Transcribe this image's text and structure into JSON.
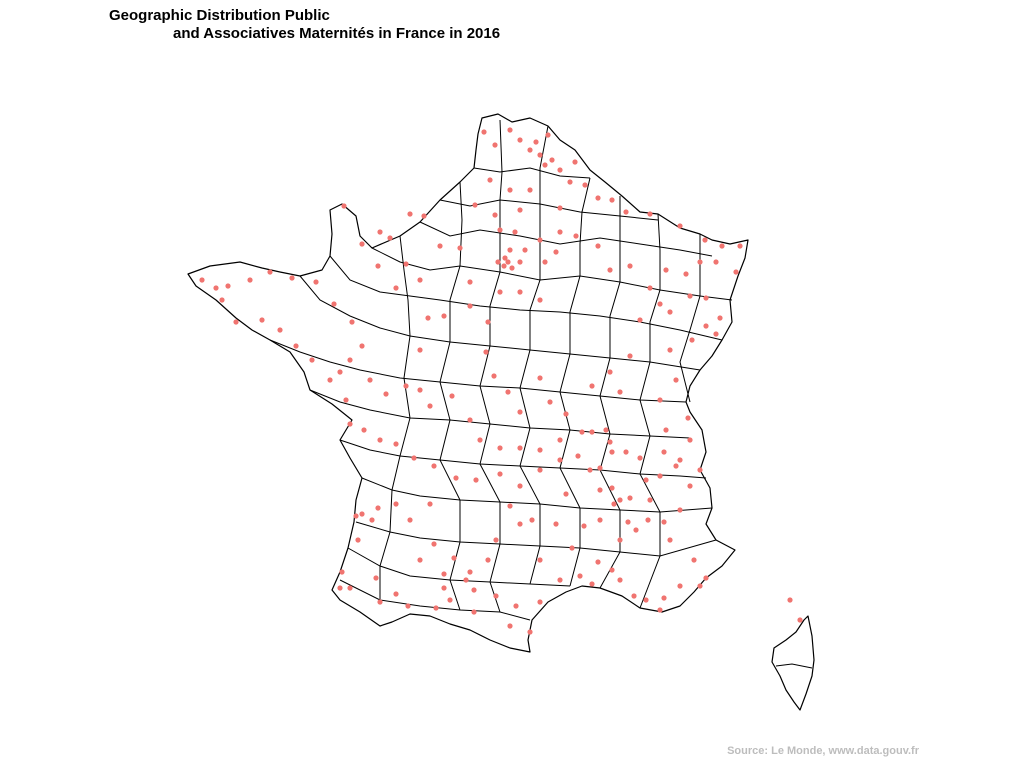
{
  "title": {
    "line1": "Geographic Distribution Public",
    "line2": "and Associatives Maternités in France in 2016"
  },
  "caption": "Source: Le Monde, www.data.gouv.fr",
  "colors": {
    "point": "#f07470",
    "outline": "#000000",
    "background": "#ffffff"
  },
  "map_data": {
    "type": "scatter-map",
    "region": "France (metropolitan)",
    "point_color": "#f07470"
  }
}
